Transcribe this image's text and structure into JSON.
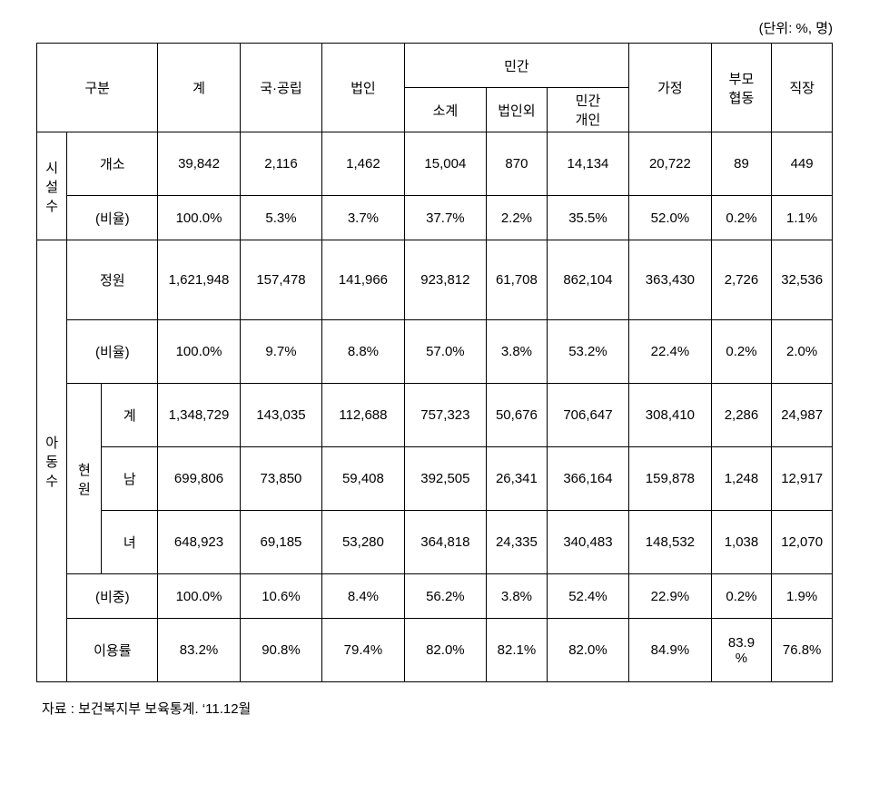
{
  "unit_text": "(단위: %, 명)",
  "headers": {
    "gubun": "구분",
    "gye": "계",
    "gukgonglip": "국·공립",
    "beobin": "법인",
    "mingan": "민간",
    "sogye": "소계",
    "beobinoe": "법인외",
    "mingangaein": "민간\n개인",
    "gajeong": "가정",
    "bumohyeopdong": "부모\n협동",
    "jikjang": "직장"
  },
  "row_labels": {
    "siseolsu": "시\n설\n수",
    "gaeso": "개소",
    "biyul": "(비율)",
    "adongsu": "아\n동\n수",
    "jeongwon": "정원",
    "hyeonwon": "현\n원",
    "hyeon_gye": "계",
    "nam": "남",
    "nyeo": "녀",
    "bijung": "(비중)",
    "iyongryul": "이용률"
  },
  "rows": {
    "gaeso": [
      "39,842",
      "2,116",
      "1,462",
      "15,004",
      "870",
      "14,134",
      "20,722",
      "89",
      "449"
    ],
    "biyul1": [
      "100.0%",
      "5.3%",
      "3.7%",
      "37.7%",
      "2.2%",
      "35.5%",
      "52.0%",
      "0.2%",
      "1.1%"
    ],
    "jeongwon": [
      "1,621,948",
      "157,478",
      "141,966",
      "923,812",
      "61,708",
      "862,104",
      "363,430",
      "2,726",
      "32,536"
    ],
    "biyul2": [
      "100.0%",
      "9.7%",
      "8.8%",
      "57.0%",
      "3.8%",
      "53.2%",
      "22.4%",
      "0.2%",
      "2.0%"
    ],
    "h_gye": [
      "1,348,729",
      "143,035",
      "112,688",
      "757,323",
      "50,676",
      "706,647",
      "308,410",
      "2,286",
      "24,987"
    ],
    "nam": [
      "699,806",
      "73,850",
      "59,408",
      "392,505",
      "26,341",
      "366,164",
      "159,878",
      "1,248",
      "12,917"
    ],
    "nyeo": [
      "648,923",
      "69,185",
      "53,280",
      "364,818",
      "24,335",
      "340,483",
      "148,532",
      "1,038",
      "12,070"
    ],
    "bijung": [
      "100.0%",
      "10.6%",
      "8.4%",
      "56.2%",
      "3.8%",
      "52.4%",
      "22.9%",
      "0.2%",
      "1.9%"
    ],
    "iyong": [
      "83.2%",
      "90.8%",
      "79.4%",
      "82.0%",
      "82.1%",
      "82.0%",
      "84.9%",
      "83.9\n%",
      "76.8%"
    ]
  },
  "source": "자료 : 보건복지부 보육통계. ‘11.12월"
}
